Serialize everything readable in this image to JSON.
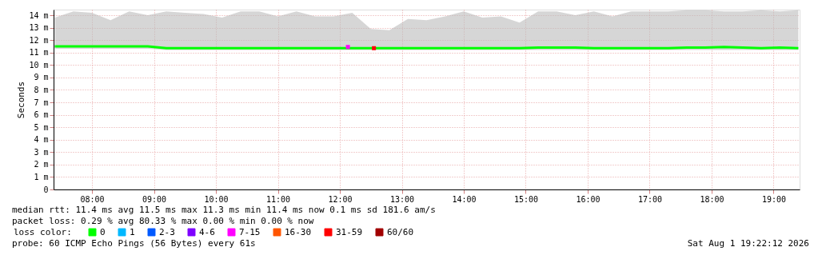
{
  "chart_data": {
    "type": "line",
    "ylabel": "Seconds",
    "legend_title": "loss color:",
    "legend": "bottom left",
    "grid": true,
    "xlim": [
      7.38,
      19.42
    ],
    "xticks": [
      {
        "value": 8,
        "label": "08:00"
      },
      {
        "value": 9,
        "label": "09:00"
      },
      {
        "value": 10,
        "label": "10:00"
      },
      {
        "value": 11,
        "label": "11:00"
      },
      {
        "value": 12,
        "label": "12:00"
      },
      {
        "value": 13,
        "label": "13:00"
      },
      {
        "value": 14,
        "label": "14:00"
      },
      {
        "value": 15,
        "label": "15:00"
      },
      {
        "value": 16,
        "label": "16:00"
      },
      {
        "value": 17,
        "label": "17:00"
      },
      {
        "value": 18,
        "label": "18:00"
      },
      {
        "value": 19,
        "label": "19:00"
      }
    ],
    "ylim": [
      0,
      14.45
    ],
    "yticks": [
      0,
      {
        "value": 1,
        "label": "1 m"
      },
      {
        "value": 2,
        "label": "2 m"
      },
      {
        "value": 3,
        "label": "3 m"
      },
      {
        "value": 4,
        "label": "4 m"
      },
      {
        "value": 5,
        "label": "5 m"
      },
      {
        "value": 6,
        "label": "6 m"
      },
      {
        "value": 7,
        "label": "7 m"
      },
      {
        "value": 8,
        "label": "8 m"
      },
      {
        "value": 9,
        "label": "9 m"
      },
      {
        "value": 10,
        "label": "10 m"
      },
      {
        "value": 11,
        "label": "11 m"
      },
      {
        "value": 12,
        "label": "12 m"
      },
      {
        "value": 13,
        "label": "13 m"
      },
      {
        "value": 14,
        "label": "14 m"
      }
    ],
    "x": [
      7.4,
      7.7,
      8.0,
      8.3,
      8.6,
      8.9,
      9.2,
      9.5,
      9.8,
      10.1,
      10.4,
      10.7,
      11.0,
      11.3,
      11.6,
      11.9,
      12.2,
      12.5,
      12.8,
      13.1,
      13.4,
      13.7,
      14.0,
      14.3,
      14.6,
      14.9,
      15.2,
      15.5,
      15.8,
      16.1,
      16.4,
      16.7,
      17.0,
      17.3,
      17.6,
      17.9,
      18.2,
      18.5,
      18.8,
      19.1,
      19.4
    ],
    "series": [
      {
        "name": "0",
        "color": "#00ff00",
        "values": [
          11.5,
          11.5,
          11.5,
          11.5,
          11.5,
          11.5,
          11.35,
          11.35,
          11.35,
          11.35,
          11.35,
          11.35,
          11.35,
          11.35,
          11.35,
          11.35,
          11.35,
          11.35,
          11.35,
          11.35,
          11.35,
          11.35,
          11.35,
          11.35,
          11.35,
          11.35,
          11.4,
          11.4,
          11.4,
          11.35,
          11.35,
          11.35,
          11.35,
          11.35,
          11.4,
          11.4,
          11.45,
          11.4,
          11.35,
          11.4,
          11.35
        ],
        "lower": [
          11.3,
          11.3,
          11.3,
          11.3,
          11.3,
          11.3,
          11.2,
          11.2,
          11.2,
          11.2,
          11.2,
          11.2,
          11.2,
          11.2,
          11.2,
          11.2,
          11.2,
          11.2,
          11.2,
          11.2,
          11.2,
          11.2,
          11.2,
          11.2,
          11.2,
          11.2,
          11.2,
          11.2,
          11.2,
          11.2,
          11.2,
          11.2,
          11.2,
          11.2,
          11.2,
          11.2,
          11.2,
          11.2,
          11.2,
          11.2,
          11.2
        ],
        "upper": [
          13.8,
          14.3,
          14.2,
          13.6,
          14.3,
          14.0,
          14.3,
          14.2,
          14.1,
          13.8,
          14.3,
          14.3,
          13.9,
          14.3,
          13.9,
          13.9,
          14.2,
          12.9,
          12.8,
          13.7,
          13.6,
          13.9,
          14.3,
          13.8,
          13.9,
          13.4,
          14.3,
          14.3,
          14.0,
          14.3,
          13.9,
          14.3,
          14.3,
          14.3,
          14.4,
          14.4,
          14.3,
          14.3,
          14.4,
          14.3,
          14.4
        ]
      },
      {
        "name": "1",
        "color": "#00b8ff",
        "type": "scatter",
        "values": [
          null,
          null,
          null,
          null,
          null,
          null,
          null,
          null,
          null,
          null,
          null,
          null,
          null,
          null,
          null,
          null,
          null,
          null,
          null,
          null,
          null,
          null,
          null,
          null,
          null,
          null,
          null,
          null,
          null,
          null,
          null,
          null,
          null,
          null,
          null,
          null,
          null,
          null,
          null,
          null,
          null
        ]
      },
      {
        "name": "2-3",
        "color": "#0059ff",
        "type": "scatter",
        "values": [
          null,
          null,
          null,
          null,
          null,
          null,
          null,
          null,
          null,
          null,
          null,
          null,
          null,
          null,
          null,
          null,
          null,
          null,
          null,
          null,
          null,
          null,
          null,
          null,
          null,
          null,
          null,
          null,
          null,
          null,
          null,
          null,
          null,
          null,
          null,
          null,
          null,
          null,
          null,
          null,
          null
        ]
      },
      {
        "name": "4-6",
        "color": "#7e00ff",
        "type": "scatter",
        "values": [
          null,
          null,
          null,
          null,
          null,
          null,
          null,
          null,
          null,
          null,
          null,
          null,
          null,
          null,
          null,
          null,
          null,
          null,
          null,
          null,
          null,
          null,
          null,
          null,
          null,
          null,
          null,
          null,
          null,
          null,
          null,
          null,
          null,
          null,
          null,
          null,
          null,
          null,
          null,
          null,
          null
        ]
      },
      {
        "name": "7-15",
        "color": "#ff00ff",
        "type": "scatter",
        "x": [
          12.13
        ],
        "values": [
          11.45
        ]
      },
      {
        "name": "16-30",
        "color": "#ff5500",
        "type": "scatter",
        "values": [
          null,
          null,
          null,
          null,
          null,
          null,
          null,
          null,
          null,
          null,
          null,
          null,
          null,
          null,
          null,
          null,
          null,
          null,
          null,
          null,
          null,
          null,
          null,
          null,
          null,
          null,
          null,
          null,
          null,
          null,
          null,
          null,
          null,
          null,
          null,
          null,
          null,
          null,
          null,
          null,
          null
        ]
      },
      {
        "name": "31-59",
        "color": "#ff0000",
        "type": "scatter",
        "x": [
          12.55
        ],
        "values": [
          11.35
        ]
      },
      {
        "name": "60/60",
        "color": "#a10000",
        "type": "scatter",
        "values": [
          null,
          null,
          null,
          null,
          null,
          null,
          null,
          null,
          null,
          null,
          null,
          null,
          null,
          null,
          null,
          null,
          null,
          null,
          null,
          null,
          null,
          null,
          null,
          null,
          null,
          null,
          null,
          null,
          null,
          null,
          null,
          null,
          null,
          null,
          null,
          null,
          null,
          null,
          null,
          null,
          null
        ]
      }
    ],
    "annotations": [
      "median rtt:  11.4 ms avg  11.5 ms max  11.3 ms min  11.4 ms now  0.1 ms sd  181.6   am/s",
      "packet loss: 0.29 % avg  80.33 % max  0.00 % min  0.00 % now",
      "probe:       60 ICMP Echo Pings (56 Bytes) every 61s",
      "Sat Aug  1 19:22:12 2026"
    ]
  }
}
